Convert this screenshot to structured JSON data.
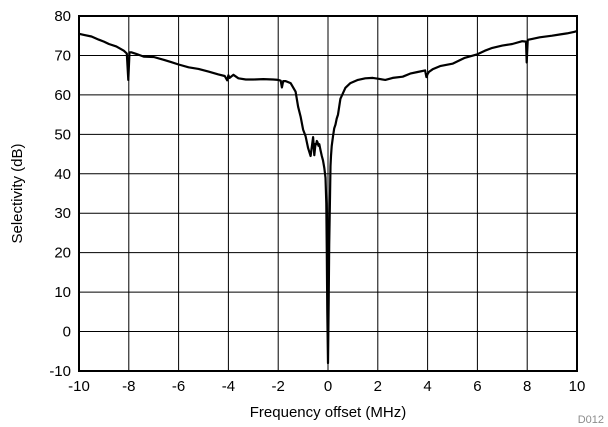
{
  "chart_data": {
    "type": "line",
    "title": "",
    "xlabel": "Frequency offset (MHz)",
    "ylabel": "Selectivity (dB)",
    "xlim": [
      -10,
      10
    ],
    "ylim": [
      -10,
      80
    ],
    "x_ticks": [
      -10,
      -8,
      -6,
      -4,
      -2,
      0,
      2,
      4,
      6,
      8,
      10
    ],
    "y_ticks": [
      -10,
      0,
      10,
      20,
      30,
      40,
      50,
      60,
      70,
      80
    ],
    "grid": true,
    "footnote": "D012",
    "series": [
      {
        "x": [
          -10,
          -9.8,
          -9.5,
          -9.2,
          -9.0,
          -8.8,
          -8.5,
          -8.2,
          -8.08,
          -8.02,
          -7.97,
          -7.9,
          -7.7,
          -7.4,
          -7.0,
          -6.6,
          -6.3,
          -6.0,
          -5.6,
          -5.2,
          -4.8,
          -4.4,
          -4.15,
          -4.05,
          -4.0,
          -3.95,
          -3.8,
          -3.6,
          -3.3,
          -3.0,
          -2.6,
          -2.2,
          -2.0,
          -1.9,
          -1.85,
          -1.8,
          -1.7,
          -1.5,
          -1.3,
          -1.2,
          -1.1,
          -1.0,
          -0.9,
          -0.8,
          -0.7,
          -0.6,
          -0.55,
          -0.5,
          -0.47,
          -0.45,
          -0.42,
          -0.38,
          -0.35,
          -0.3,
          -0.25,
          -0.2,
          -0.15,
          -0.1,
          -0.07,
          -0.05,
          -0.03,
          0,
          0.03,
          0.05,
          0.08,
          0.1,
          0.12,
          0.15,
          0.2,
          0.25,
          0.3,
          0.35,
          0.4,
          0.5,
          0.7,
          0.9,
          1.2,
          1.5,
          1.8,
          2.0,
          2.3,
          2.6,
          3.0,
          3.3,
          3.6,
          3.9,
          3.95,
          4.0,
          4.05,
          4.2,
          4.5,
          5.0,
          5.5,
          6.0,
          6.3,
          6.6,
          7.0,
          7.4,
          7.8,
          7.95,
          7.98,
          8.02,
          8.05,
          8.2,
          8.5,
          9.0,
          9.3,
          9.6,
          9.9,
          10
        ],
        "y": [
          75.5,
          75.2,
          74.8,
          74.0,
          73.5,
          72.9,
          72.3,
          71.2,
          70.5,
          63.8,
          70.8,
          70.8,
          70.4,
          69.7,
          69.6,
          68.9,
          68.3,
          67.7,
          67.0,
          66.6,
          65.9,
          65.2,
          64.8,
          63.7,
          65.0,
          64.3,
          65.1,
          64.2,
          63.9,
          63.9,
          64.0,
          63.9,
          63.8,
          63.6,
          61.9,
          63.5,
          63.5,
          63.0,
          60.8,
          57.0,
          54.5,
          51.2,
          49.5,
          46.5,
          44.5,
          49.3,
          44.7,
          47.6,
          47.5,
          48.3,
          48.0,
          47.1,
          47.5,
          46.0,
          44.5,
          43.4,
          41.5,
          39.0,
          32.5,
          20.0,
          5.0,
          -8.0,
          8.0,
          22.0,
          34.0,
          42.0,
          44.5,
          47.0,
          49.5,
          51.5,
          52.5,
          54.0,
          55.0,
          59.0,
          61.8,
          63.0,
          63.8,
          64.2,
          64.3,
          64.1,
          63.8,
          64.3,
          64.6,
          65.4,
          65.8,
          66.2,
          64.5,
          65.3,
          65.8,
          66.5,
          67.3,
          67.9,
          69.4,
          70.3,
          71.2,
          71.9,
          72.5,
          72.9,
          73.6,
          73.5,
          68.2,
          73.8,
          74.0,
          74.2,
          74.6,
          75.0,
          75.3,
          75.6,
          76.0,
          76.2
        ]
      }
    ]
  }
}
